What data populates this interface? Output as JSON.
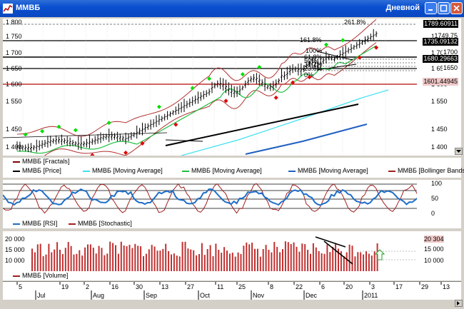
{
  "window": {
    "title": "ММВБ",
    "period": "Дневной"
  },
  "price_pane": {
    "y_ticks": [
      "1 800",
      "1 750",
      "1 700",
      "1 650",
      "1 600",
      "1 550",
      "1 450",
      "1 400"
    ],
    "price_tags": [
      {
        "text": "1789.60911",
        "style": "dark"
      },
      {
        "text": "1749.75",
        "style": "light"
      },
      {
        "text": "1735.09132",
        "style": "dark"
      },
      {
        "text": "1700",
        "style": "light"
      },
      {
        "text": "1680.29663",
        "style": "dark"
      },
      {
        "text": "1650",
        "style": "light"
      },
      {
        "text": "1601.44945",
        "style": "pink"
      }
    ],
    "fib_labels": [
      "261.8%",
      "161.8%",
      "100%",
      "61.8%",
      "50%",
      "38.2%",
      "23.6%",
      "0%"
    ],
    "legend": [
      {
        "name": "ММВБ [Fractals]",
        "color": "#800000"
      },
      {
        "name": "ММВБ [Price]",
        "color": "#000000"
      },
      {
        "name": "ММВБ [Moving Average]",
        "color": "#40e0f0"
      },
      {
        "name": "ММВБ [Moving Average]",
        "color": "#20c040"
      },
      {
        "name": "ММВБ [Moving Average]",
        "color": "#2060c0"
      },
      {
        "name": "ММВБ [Bollinger Bands]",
        "color": "#a02020"
      }
    ]
  },
  "osc_pane": {
    "y_ticks": [
      "100",
      "50",
      "0"
    ],
    "legend": [
      {
        "name": "ММВБ [RSI]",
        "color": "#1e6ec8"
      },
      {
        "name": "ММВБ [Stochastic]",
        "color": "#a02020"
      }
    ]
  },
  "volume_pane": {
    "y_ticks": [
      "20 000",
      "15 000",
      "10 000"
    ],
    "right_ticks": [
      "20 304",
      "15 000",
      "10 000"
    ],
    "legend": [
      {
        "name": "ММВБ [Volume]",
        "color": "#a02020"
      }
    ]
  },
  "time_axis": {
    "days": [
      "5",
      "19",
      "2",
      "16",
      "30",
      "13",
      "27",
      "11",
      "25",
      "8",
      "22",
      "6",
      "20",
      "3",
      "17",
      "29",
      "13",
      "27"
    ],
    "months": [
      "Jul",
      "Aug",
      "Sep",
      "Oct",
      "Nov",
      "Dec",
      "2011"
    ]
  },
  "colors": {
    "bull": "#00e000",
    "bear": "#e00000",
    "boll": "#b03030"
  }
}
